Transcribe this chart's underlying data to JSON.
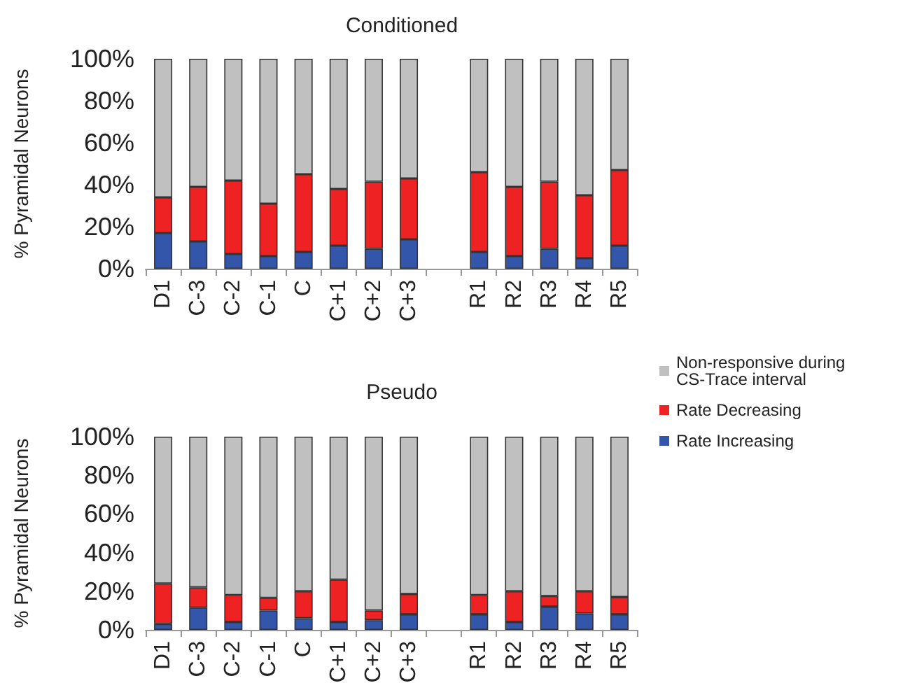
{
  "chart_data": [
    {
      "type": "bar",
      "title": "Conditioned",
      "ylabel": "% Pyramidal Neurons",
      "stacked": true,
      "grid": false,
      "legend": "bottom right",
      "categories": [
        "D1",
        "C-3",
        "C-2",
        "C-1",
        "C",
        "C+1",
        "C+2",
        "C+3",
        null,
        "R1",
        "R2",
        "R3",
        "R4",
        "R5"
      ],
      "ylim": [
        0,
        100
      ],
      "yticks": [
        {
          "value": 0,
          "label": "0%"
        },
        {
          "value": 20,
          "label": "20%"
        },
        {
          "value": 40,
          "label": "40%"
        },
        {
          "value": 60,
          "label": "60%"
        },
        {
          "value": 80,
          "label": "80%"
        },
        {
          "value": 100,
          "label": "100%"
        }
      ],
      "series": [
        {
          "name": "Rate Increasing",
          "color": "#3355aa",
          "values": [
            17,
            13,
            7,
            6,
            8,
            11,
            9.5,
            14,
            null,
            8,
            6,
            9.5,
            5,
            11
          ]
        },
        {
          "name": "Rate Decreasing",
          "color": "#ee2222",
          "values": [
            17,
            26,
            35,
            25,
            37,
            27,
            32,
            29,
            null,
            38,
            33,
            32,
            30,
            36
          ]
        },
        {
          "name": "Non-responsive during CS-Trace interval",
          "color": "#c0c0c0",
          "values": [
            66,
            61,
            58,
            69,
            55,
            62,
            58.5,
            57,
            null,
            54,
            61,
            58.5,
            65,
            53
          ]
        }
      ]
    },
    {
      "type": "bar",
      "title": "Pseudo",
      "ylabel": "% Pyramidal Neurons",
      "stacked": true,
      "grid": false,
      "categories": [
        "D1",
        "C-3",
        "C-2",
        "C-1",
        "C",
        "C+1",
        "C+2",
        "C+3",
        null,
        "R1",
        "R2",
        "R3",
        "R4",
        "R5"
      ],
      "ylim": [
        0,
        100
      ],
      "yticks": [
        {
          "value": 0,
          "label": "0%"
        },
        {
          "value": 20,
          "label": "20%"
        },
        {
          "value": 40,
          "label": "40%"
        },
        {
          "value": 60,
          "label": "60%"
        },
        {
          "value": 80,
          "label": "80%"
        },
        {
          "value": 100,
          "label": "100%"
        }
      ],
      "series": [
        {
          "color": "#3355aa",
          "values": [
            3,
            11.5,
            4,
            10,
            6,
            4,
            5,
            8,
            null,
            8,
            4,
            12,
            8.5,
            8
          ]
        },
        {
          "color": "#ee2222",
          "values": [
            21,
            10.5,
            14,
            6.5,
            14,
            22,
            5,
            10.5,
            null,
            10,
            16,
            5.5,
            11.5,
            9
          ]
        },
        {
          "color": "#c0c0c0",
          "values": [
            76,
            78,
            82,
            83.5,
            80,
            74,
            90,
            81.5,
            null,
            82,
            80,
            82.5,
            80,
            83
          ]
        }
      ]
    }
  ]
}
